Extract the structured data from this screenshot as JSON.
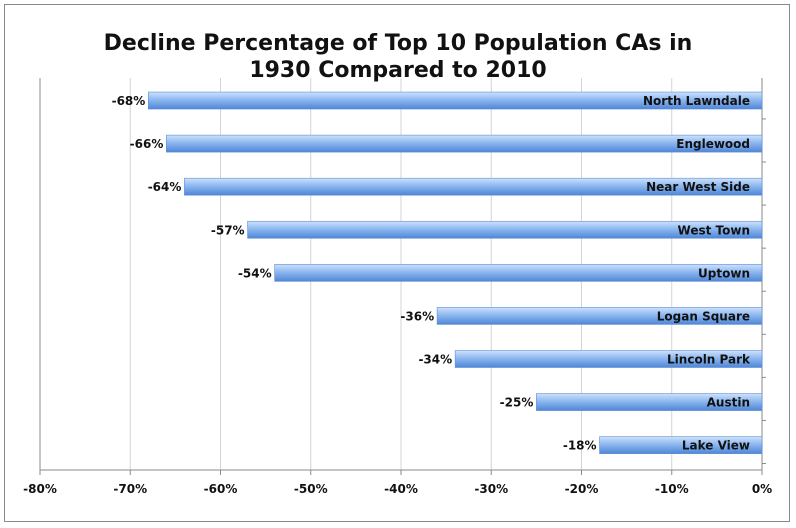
{
  "chart_data": {
    "type": "bar",
    "orientation": "horizontal",
    "title": "Decline Percentage of Top 10 Population CAs in 1930 Compared to 2010",
    "title_lines": [
      "Decline Percentage of Top 10 Population CAs in",
      "1930 Compared to 2010"
    ],
    "categories": [
      "North Lawndale",
      "Englewood",
      "Near West Side",
      "West Town",
      "Uptown",
      "Logan Square",
      "Lincoln Park",
      "Austin",
      "Lake View"
    ],
    "values": [
      -68,
      -66,
      -64,
      -57,
      -54,
      -36,
      -34,
      -25,
      -18
    ],
    "value_labels": [
      "-68%",
      "-66%",
      "-64%",
      "-57%",
      "-54%",
      "-36%",
      "-34%",
      "-25%",
      "-18%"
    ],
    "xlim": [
      -80,
      0
    ],
    "xticks": [
      -80,
      -70,
      -60,
      -50,
      -40,
      -30,
      -20,
      -10,
      0
    ],
    "xtick_labels": [
      "-80%",
      "-70%",
      "-60%",
      "-50%",
      "-40%",
      "-30%",
      "-20%",
      "-10%",
      "0%"
    ],
    "xlabel": "",
    "ylabel": "",
    "grid": "vertical",
    "legend": "none",
    "colors": {
      "bar_light": "#cfe2fb",
      "bar_mid": "#8db8f0",
      "bar_dark": "#4f86d6",
      "grid": "#d4d4d4",
      "axis": "#8a8a8a"
    }
  }
}
